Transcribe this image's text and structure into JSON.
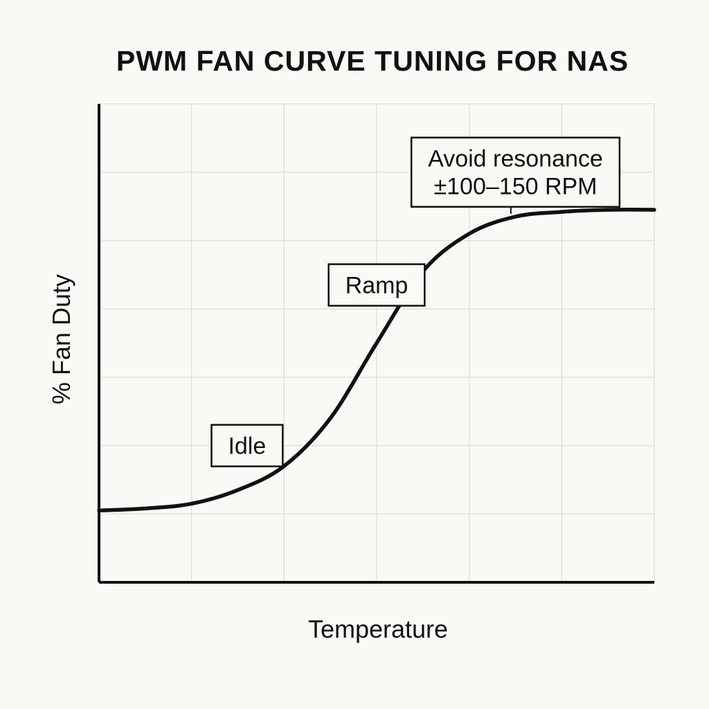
{
  "chart_data": {
    "type": "line",
    "title": "PWM FAN CURVE TUNING FOR NAS",
    "xlabel": "Temperature",
    "ylabel": "% Fan Duty",
    "xlim": [
      0,
      6
    ],
    "ylim": [
      0,
      7
    ],
    "grid": true,
    "legend": "none",
    "series": [
      {
        "values": [
          [
            0,
            1.05
          ],
          [
            0.5,
            1.08
          ],
          [
            1,
            1.15
          ],
          [
            1.5,
            1.35
          ],
          [
            2,
            1.7
          ],
          [
            2.5,
            2.4
          ],
          [
            3,
            3.5
          ],
          [
            3.5,
            4.55
          ],
          [
            4,
            5.1
          ],
          [
            4.5,
            5.35
          ],
          [
            5,
            5.42
          ],
          [
            5.5,
            5.45
          ],
          [
            6,
            5.45
          ]
        ]
      }
    ],
    "annotations": [
      {
        "label": "Idle",
        "x": 1.6,
        "y": 2.0
      },
      {
        "label": "Ramp",
        "x": 3.0,
        "y": 4.35
      },
      {
        "label": "Avoid resonance",
        "label2": "±100–150 RPM",
        "x": 4.5,
        "y": 6.0,
        "pointer_to": [
          4.45,
          5.35
        ]
      }
    ]
  }
}
